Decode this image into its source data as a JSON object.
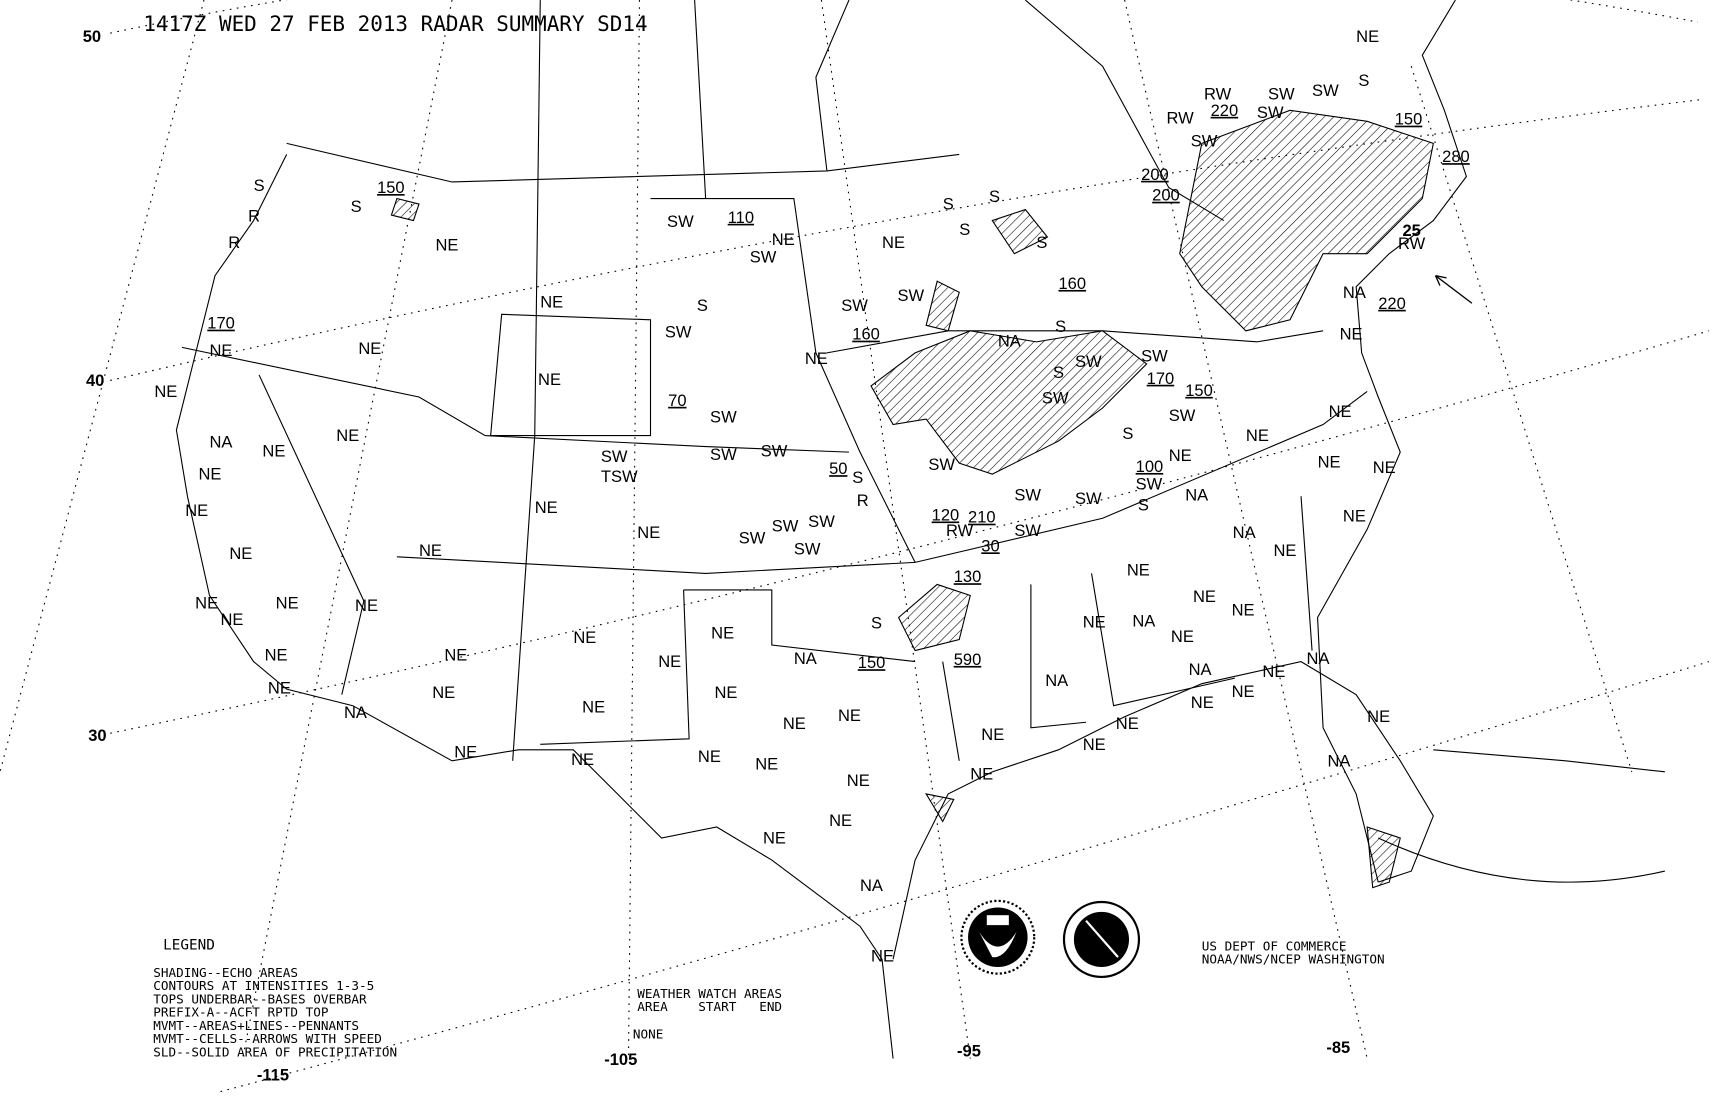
{
  "title": "1417Z WED 27 FEB 2013 RADAR SUMMARY SD14",
  "latitude_labels": [
    "50",
    "40",
    "30",
    "25"
  ],
  "longitude_labels": [
    "-115",
    "-105",
    "-95",
    "-85"
  ],
  "legend": {
    "heading": "LEGEND",
    "lines": [
      "SHADING--ECHO AREAS",
      "CONTOURS AT INTENSITIES 1-3-5",
      "TOPS UNDERBAR--BASES OVERBAR",
      "PREFIX-A--ACFT RPTD TOP",
      "MVMT--AREAS+LINES--PENNANTS",
      "MVMT--CELLS--ARROWS WITH SPEED",
      "SLD--SOLID AREA OF PRECIPITATION"
    ]
  },
  "watch": {
    "heading": "WEATHER WATCH AREAS",
    "columns": "AREA    START   END",
    "value": "NONE"
  },
  "credit": [
    "US DEPT OF COMMERCE",
    "NOAA/NWS/NCEP WASHINGTON"
  ],
  "logos": [
    "noaa-logo",
    "nws-logo"
  ],
  "echo_tops": [
    "150",
    "110",
    "170",
    "160",
    "70",
    "220",
    "150",
    "280",
    "200",
    "200",
    "220",
    "160",
    "170",
    "150",
    "100",
    "50",
    "120",
    "210",
    "30",
    "130",
    "150",
    "590"
  ],
  "station_status": [
    "NE",
    "NE",
    "NE",
    "NE",
    "NE",
    "NE",
    "NE",
    "NE",
    "NE",
    "NE",
    "NE",
    "NE",
    "NE",
    "NE",
    "NE",
    "NE",
    "NE",
    "NE",
    "NE",
    "NE",
    "NE",
    "NE",
    "NE",
    "NE",
    "NE",
    "NE",
    "NE",
    "NE",
    "NE",
    "NE",
    "NE",
    "NE",
    "NE",
    "NE",
    "NE",
    "NE",
    "NE",
    "NE",
    "NE",
    "NE",
    "NE",
    "NE",
    "NE",
    "NE",
    "NE",
    "NE",
    "NE",
    "NE",
    "NE",
    "NE",
    "NE",
    "NE",
    "NE",
    "NE",
    "NE",
    "NE",
    "NE",
    "NE",
    "NE",
    "NE",
    "NE",
    "NE",
    "NA",
    "NA",
    "NA",
    "NA",
    "NA",
    "NA",
    "NA",
    "NA",
    "NA",
    "NA",
    "NA",
    "NA",
    "NA"
  ],
  "precip_types": [
    "S",
    "S",
    "S",
    "S",
    "S",
    "S",
    "S",
    "S",
    "S",
    "S",
    "S",
    "S",
    "S",
    "S",
    "SW",
    "SW",
    "SW",
    "SW",
    "SW",
    "SW",
    "SW",
    "SW",
    "SW",
    "SW",
    "SW",
    "SW",
    "SW",
    "SW",
    "SW",
    "SW",
    "SW",
    "SW",
    "SW",
    "SW",
    "SW",
    "SW",
    "SW",
    "SW",
    "SW",
    "SW",
    "TSW",
    "R",
    "R",
    "R",
    "RW",
    "RW",
    "RW",
    "RW"
  ]
}
